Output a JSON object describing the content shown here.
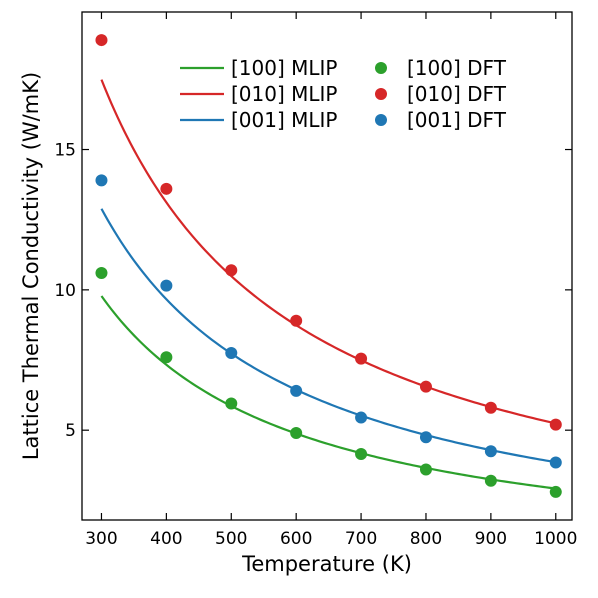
{
  "chart_data": {
    "type": "line",
    "title": "",
    "xlabel": "Temperature (K)",
    "ylabel": "Lattice Thermal Conductivity (W/mK)",
    "xlim": [
      270,
      1025
    ],
    "ylim": [
      1.8,
      19.9
    ],
    "xticks": [
      300,
      400,
      500,
      600,
      700,
      800,
      900,
      1000
    ],
    "yticks": [
      5,
      10,
      15
    ],
    "grid": false,
    "legend_position": "top-right",
    "x": [
      300,
      400,
      500,
      600,
      700,
      800,
      900,
      1000
    ],
    "series": [
      {
        "name": "[100] MLIP",
        "kind": "line",
        "color": "#2ca02c",
        "a": 2940,
        "b": -0.02
      },
      {
        "name": "[010] MLIP",
        "kind": "line",
        "color": "#d62728",
        "a": 5250,
        "b": -0.01
      },
      {
        "name": "[001] MLIP",
        "kind": "line",
        "color": "#1f77b4",
        "a": 3870,
        "b": -0.01
      },
      {
        "name": "[100] DFT",
        "kind": "scatter",
        "color": "#2ca02c",
        "values": [
          10.6,
          7.6,
          5.95,
          4.9,
          4.15,
          3.6,
          3.2,
          2.8
        ]
      },
      {
        "name": "[010] DFT",
        "kind": "scatter",
        "color": "#d62728",
        "values": [
          18.9,
          13.6,
          10.7,
          8.9,
          7.55,
          6.55,
          5.8,
          5.2
        ]
      },
      {
        "name": "[001] DFT",
        "kind": "scatter",
        "color": "#1f77b4",
        "values": [
          13.9,
          10.15,
          7.75,
          6.4,
          5.45,
          4.75,
          4.25,
          3.85
        ]
      }
    ]
  }
}
